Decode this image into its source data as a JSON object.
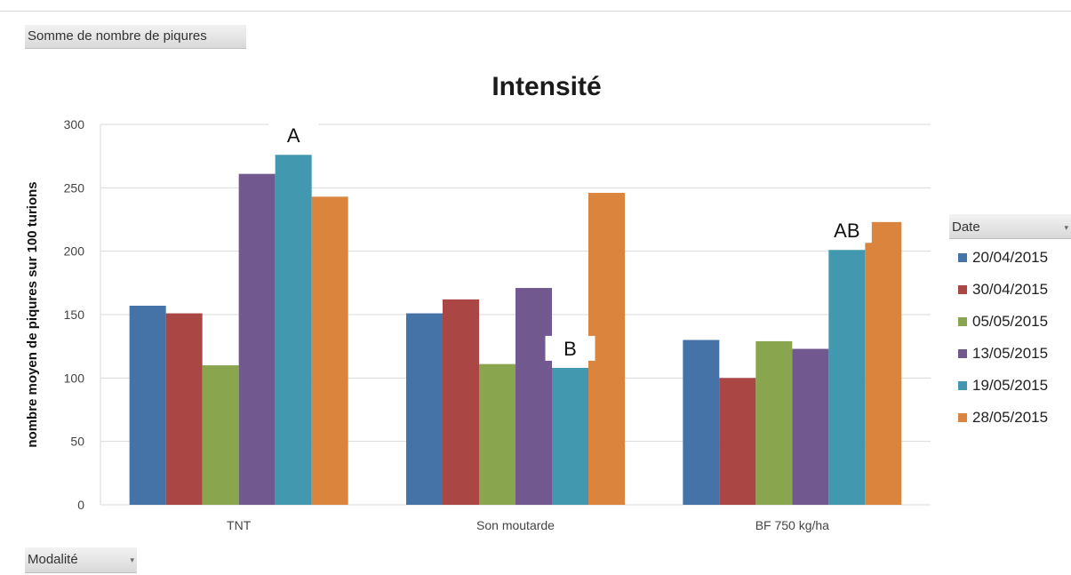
{
  "pivot_fields": {
    "value_field": "Somme de nombre de piqures",
    "axis_field": "Modalité",
    "legend_field": "Date"
  },
  "chart_data": {
    "type": "bar",
    "title": "Intensité",
    "xlabel": "",
    "ylabel": "nombre moyen de piqures sur 100 turions",
    "ylim": [
      0,
      300
    ],
    "yticks": [
      0,
      50,
      100,
      150,
      200,
      250,
      300
    ],
    "grid": true,
    "legend_position": "right",
    "categories": [
      "TNT",
      "Son moutarde",
      "BF 750 kg/ha"
    ],
    "series": [
      {
        "name": "20/04/2015",
        "color": "#4572a7",
        "values": [
          157,
          151,
          130
        ]
      },
      {
        "name": "30/04/2015",
        "color": "#aa4643",
        "values": [
          151,
          162,
          100
        ]
      },
      {
        "name": "05/05/2015",
        "color": "#89a54e",
        "values": [
          110,
          111,
          129
        ]
      },
      {
        "name": "13/05/2015",
        "color": "#71588f",
        "values": [
          261,
          171,
          123
        ]
      },
      {
        "name": "19/05/2015",
        "color": "#4198af",
        "values": [
          276,
          108,
          201
        ]
      },
      {
        "name": "28/05/2015",
        "color": "#db843d",
        "values": [
          243,
          246,
          223
        ]
      }
    ],
    "annotations": [
      {
        "text": "A",
        "category": 0,
        "series": 4
      },
      {
        "text": "B",
        "category": 1,
        "series": 4
      },
      {
        "text": "AB",
        "category": 2,
        "series": 4
      }
    ]
  }
}
